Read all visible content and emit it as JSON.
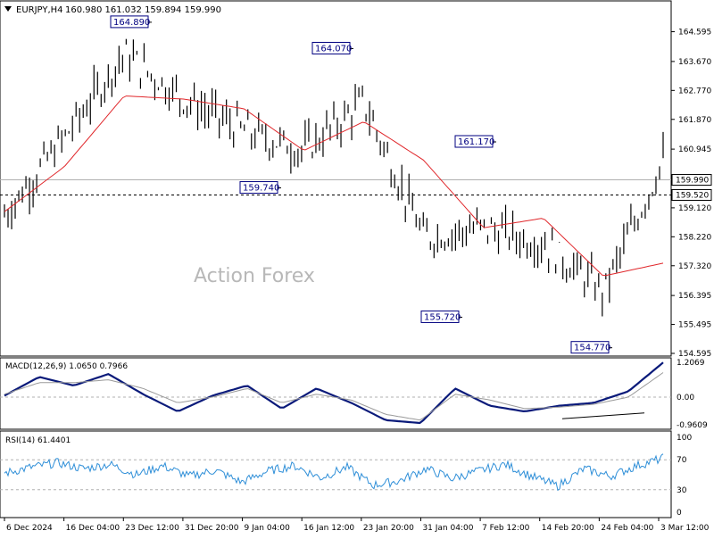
{
  "header": {
    "symbol": "EURJPY,H4",
    "ohlc": "160.980 161.032 159.894 159.990"
  },
  "watermark": "Action Forex",
  "colors": {
    "candles": "#000000",
    "ma": "#e0262a",
    "macd": "#0a1a7a",
    "macd_signal": "#9a9a9a",
    "rsi": "#2f8fd8",
    "label_text": "#000080"
  },
  "chart_data": [
    {
      "type": "candlestick",
      "title": "EURJPY,H4",
      "ylim": [
        154.595,
        165.47
      ],
      "y_ticks": [
        "164.595",
        "163.670",
        "162.770",
        "161.870",
        "160.945",
        "160.045",
        "159.120",
        "158.220",
        "157.320",
        "156.395",
        "155.495",
        "154.595"
      ],
      "x_ticks": [
        "6 Dec 2024",
        "16 Dec 04:00",
        "23 Dec 12:00",
        "31 Dec 20:00",
        "9 Jan 04:00",
        "16 Jan 12:00",
        "23 Jan 20:00",
        "31 Jan 04:00",
        "7 Feb 12:00",
        "14 Feb 20:00",
        "24 Feb 04:00",
        "3 Mar 12:00"
      ],
      "current_price": "159.990",
      "level_line": "159.520",
      "annotations": [
        "164.890",
        "164.070",
        "161.170",
        "159.740",
        "155.720",
        "154.770"
      ],
      "close_path": [
        {
          "x": "6 Dec 2024",
          "y": 158.9
        },
        {
          "x": "16 Dec 04:00",
          "y": 161.3
        },
        {
          "x": "23 Dec 12:00",
          "y": 163.9
        },
        {
          "x": "31 Dec 20:00",
          "y": 162.5
        },
        {
          "x": "9 Jan 04:00",
          "y": 161.5
        },
        {
          "x": "16 Jan 12:00",
          "y": 160.9
        },
        {
          "x": "23 Jan 20:00",
          "y": 162.4
        },
        {
          "x": "31 Jan 04:00",
          "y": 158.2
        },
        {
          "x": "7 Feb 12:00",
          "y": 158.5
        },
        {
          "x": "14 Feb 20:00",
          "y": 158.0
        },
        {
          "x": "24 Feb 04:00",
          "y": 156.5
        },
        {
          "x": "3 Mar 12:00",
          "y": 160.6
        }
      ],
      "ma_path": [
        {
          "x": "6 Dec 2024",
          "y": 159.0
        },
        {
          "x": "16 Dec 04:00",
          "y": 160.4
        },
        {
          "x": "23 Dec 12:00",
          "y": 162.6
        },
        {
          "x": "31 Dec 20:00",
          "y": 162.5
        },
        {
          "x": "9 Jan 04:00",
          "y": 162.2
        },
        {
          "x": "16 Jan 12:00",
          "y": 160.9
        },
        {
          "x": "23 Jan 20:00",
          "y": 161.8
        },
        {
          "x": "31 Jan 04:00",
          "y": 160.6
        },
        {
          "x": "7 Feb 12:00",
          "y": 158.5
        },
        {
          "x": "14 Feb 20:00",
          "y": 158.8
        },
        {
          "x": "24 Feb 04:00",
          "y": 157.0
        },
        {
          "x": "3 Mar 12:00",
          "y": 157.4
        }
      ]
    },
    {
      "type": "line",
      "title": "MACD(12,26,9) 1.0650 0.7966",
      "ylim": [
        -0.9609,
        1.2069
      ],
      "y_ticks": [
        "1.2069",
        "0.00",
        "-0.9609"
      ],
      "series": [
        {
          "name": "MACD",
          "values": [
            0.05,
            0.7,
            0.4,
            0.8,
            0.1,
            -0.5,
            0.05,
            0.4,
            -0.4,
            0.3,
            -0.2,
            -0.8,
            -0.9,
            0.3,
            -0.3,
            -0.5,
            -0.3,
            -0.2,
            0.2,
            1.2
          ]
        },
        {
          "name": "Signal",
          "values": [
            0.1,
            0.5,
            0.5,
            0.6,
            0.3,
            -0.2,
            0.0,
            0.3,
            -0.2,
            0.1,
            -0.1,
            -0.6,
            -0.8,
            0.1,
            -0.1,
            -0.4,
            -0.35,
            -0.25,
            0.0,
            0.85
          ]
        }
      ]
    },
    {
      "type": "line",
      "title": "RSI(14) 61.4401",
      "ylim": [
        0,
        100
      ],
      "y_ticks": [
        "100",
        "70",
        "30",
        "0"
      ],
      "series": [
        {
          "name": "RSI",
          "values": [
            52,
            60,
            66,
            58,
            64,
            50,
            62,
            48,
            56,
            40,
            55,
            62,
            46,
            60,
            36,
            42,
            58,
            45,
            55,
            64,
            48,
            35,
            58,
            48,
            62,
            72
          ]
        }
      ]
    }
  ]
}
